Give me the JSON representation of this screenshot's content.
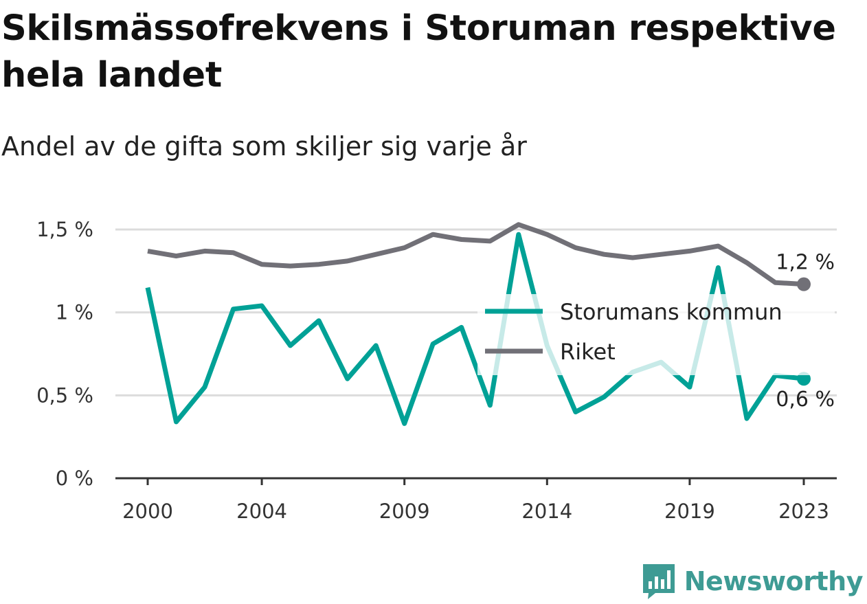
{
  "header": {
    "title": "Skilsmässofrekvens i Storuman respektive hela landet",
    "subtitle": "Andel av de gifta som skiljer sig varje år"
  },
  "brand": {
    "name": "Newsworthy",
    "logo_icon": "newsworthy-logo-icon",
    "color": "#3e9b94"
  },
  "chart_data": {
    "type": "line",
    "x": [
      2000,
      2001,
      2002,
      2003,
      2004,
      2005,
      2006,
      2007,
      2008,
      2009,
      2010,
      2011,
      2012,
      2013,
      2014,
      2015,
      2016,
      2017,
      2018,
      2019,
      2020,
      2021,
      2022,
      2023
    ],
    "x_ticks": [
      2000,
      2004,
      2009,
      2014,
      2019,
      2023
    ],
    "x_tick_labels": [
      "2000",
      "2004",
      "2009",
      "2014",
      "2019",
      "2023"
    ],
    "y_ticks": [
      0,
      0.5,
      1,
      1.5
    ],
    "y_tick_labels": [
      "0 %",
      "0,5 %",
      "1 %",
      "1,5 %"
    ],
    "ylim": [
      0,
      1.5
    ],
    "grid": true,
    "legend_position": "center-right",
    "series": [
      {
        "name": "Storumans kommun",
        "color": "#00a196",
        "values": [
          1.15,
          0.34,
          0.55,
          1.02,
          1.04,
          0.8,
          0.95,
          0.6,
          0.8,
          0.33,
          0.81,
          0.91,
          0.44,
          1.47,
          0.8,
          0.4,
          0.49,
          0.64,
          0.7,
          0.55,
          1.27,
          0.36,
          0.62,
          0.6
        ],
        "end_label": "0,6 %"
      },
      {
        "name": "Riket",
        "color": "#717077",
        "values": [
          1.37,
          1.34,
          1.37,
          1.36,
          1.29,
          1.28,
          1.29,
          1.31,
          1.35,
          1.39,
          1.47,
          1.44,
          1.43,
          1.53,
          1.47,
          1.39,
          1.35,
          1.33,
          1.35,
          1.37,
          1.4,
          1.3,
          1.18,
          1.17
        ],
        "end_label": "1,2 %"
      }
    ]
  }
}
